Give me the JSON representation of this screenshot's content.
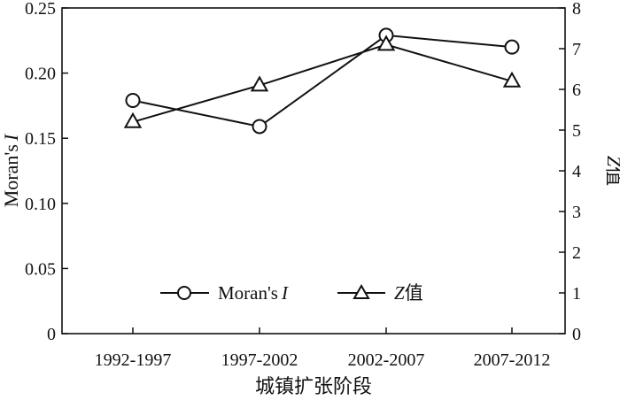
{
  "chart_data": {
    "type": "line",
    "xlabel": "城镇扩张阶段",
    "categories": [
      "1992-1997",
      "1997-2002",
      "2002-2007",
      "2007-2012"
    ],
    "y_left": {
      "label_main": "Moran's",
      "label_italic": "I",
      "lim": [
        0,
        0.25
      ],
      "ticks": [
        "0",
        "0.05",
        "0.10",
        "0.15",
        "0.20",
        "0.25"
      ]
    },
    "y_right": {
      "label_italic": "Z",
      "label_main": "值",
      "lim": [
        0,
        8
      ],
      "ticks": [
        "0",
        "1",
        "2",
        "3",
        "4",
        "5",
        "6",
        "7",
        "8"
      ]
    },
    "series": [
      {
        "name_main": "Moran's",
        "name_italic": "I",
        "axis": "left",
        "marker": "circle",
        "values": [
          0.179,
          0.159,
          0.229,
          0.22
        ]
      },
      {
        "name_main": "值",
        "name_italic": "Z",
        "axis": "right",
        "marker": "triangle",
        "values": [
          5.2,
          6.1,
          7.1,
          6.2
        ]
      }
    ],
    "legend_position": "bottom-center",
    "grid": false
  }
}
